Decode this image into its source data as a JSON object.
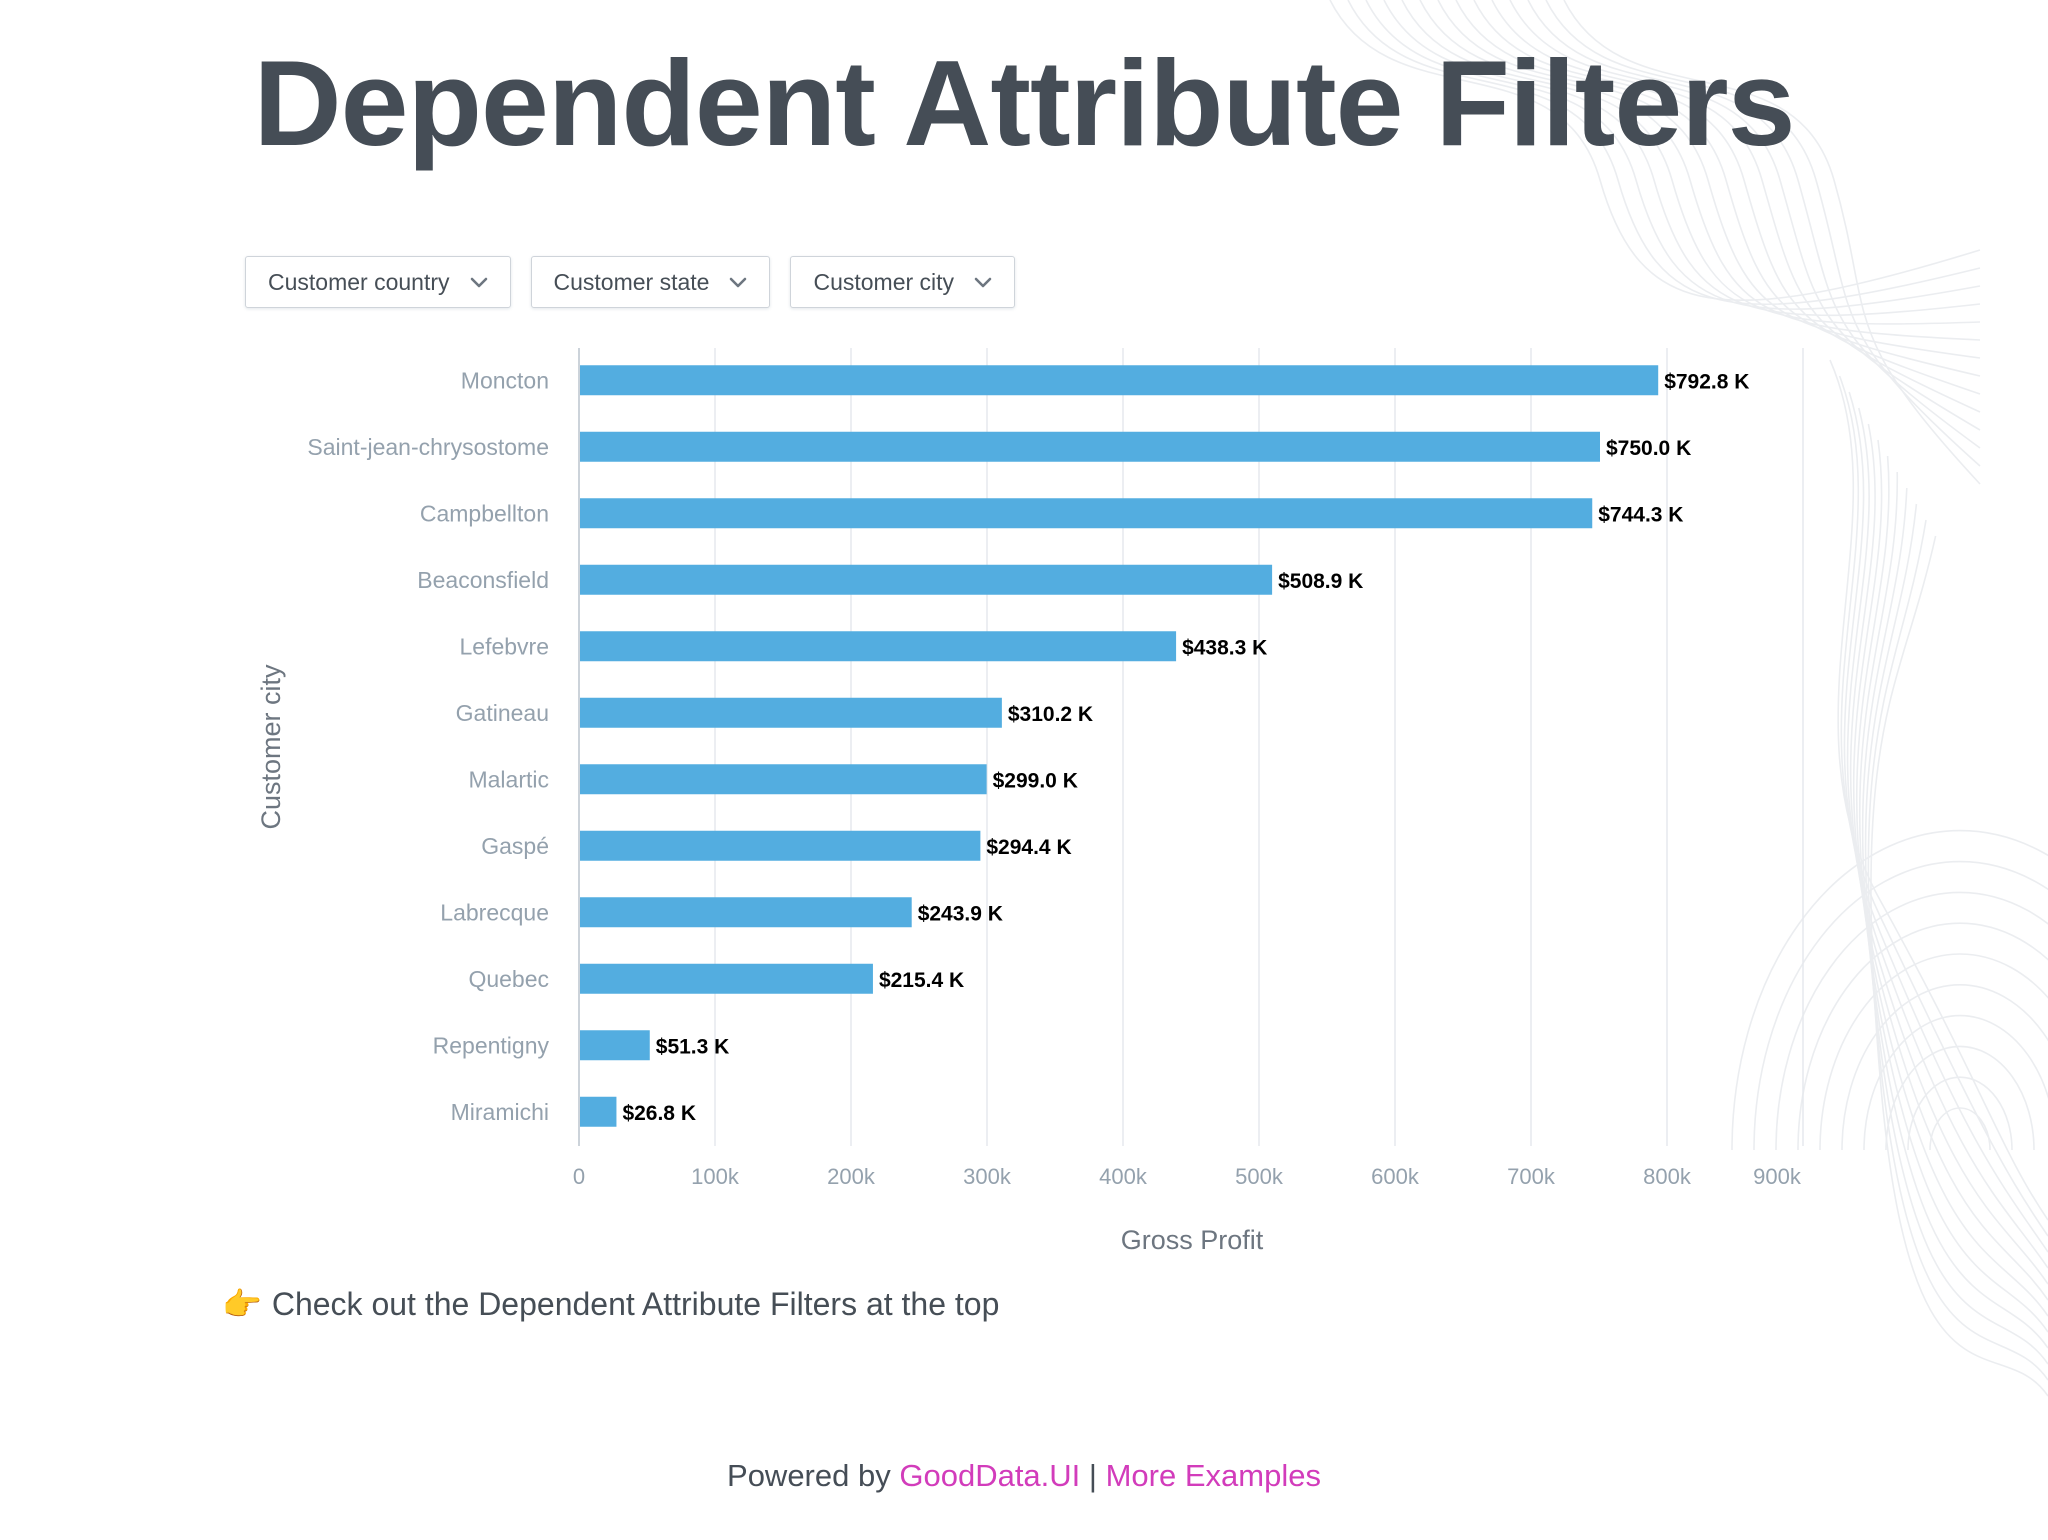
{
  "page": {
    "title": "Dependent Attribute Filters",
    "hint_icon": "👉",
    "hint_text": "Check out the Dependent Attribute Filters at the top"
  },
  "filters": [
    {
      "label": "Customer country",
      "icon": "chevron-down-icon"
    },
    {
      "label": "Customer state",
      "icon": "chevron-down-icon"
    },
    {
      "label": "Customer city",
      "icon": "chevron-down-icon"
    }
  ],
  "footer": {
    "prefix": "Powered by",
    "link1": "GoodData.UI",
    "separator": "|",
    "link2": "More Examples"
  },
  "colors": {
    "bar": "#53ade0",
    "link": "#d23cbb",
    "title": "#454d56",
    "axis_text": "#94a1ad"
  },
  "chart_data": {
    "type": "bar",
    "orientation": "horizontal",
    "categories": [
      "Moncton",
      "Saint-jean-chrysostome",
      "Campbellton",
      "Beaconsfield",
      "Lefebvre",
      "Gatineau",
      "Malartic",
      "Gaspé",
      "Labrecque",
      "Quebec",
      "Repentigny",
      "Miramichi"
    ],
    "values": [
      792800,
      750000,
      744300,
      508900,
      438300,
      310200,
      299000,
      294400,
      243900,
      215400,
      51300,
      26800
    ],
    "data_labels": [
      "$792.8 K",
      "$750.0 K",
      "$744.3 K",
      "$508.9 K",
      "$438.3 K",
      "$310.2 K",
      "$299.0 K",
      "$294.4 K",
      "$243.9 K",
      "$215.4 K",
      "$51.3 K",
      "$26.8 K"
    ],
    "xlabel": "Gross Profit",
    "ylabel": "Customer city",
    "xlim": [
      0,
      900000
    ],
    "x_ticks": [
      0,
      100000,
      200000,
      300000,
      400000,
      500000,
      600000,
      700000,
      800000,
      900000
    ],
    "x_tick_labels": [
      "0",
      "100k",
      "200k",
      "300k",
      "400k",
      "500k",
      "600k",
      "700k",
      "800k",
      "900k"
    ],
    "grid": true,
    "legend": "none"
  }
}
